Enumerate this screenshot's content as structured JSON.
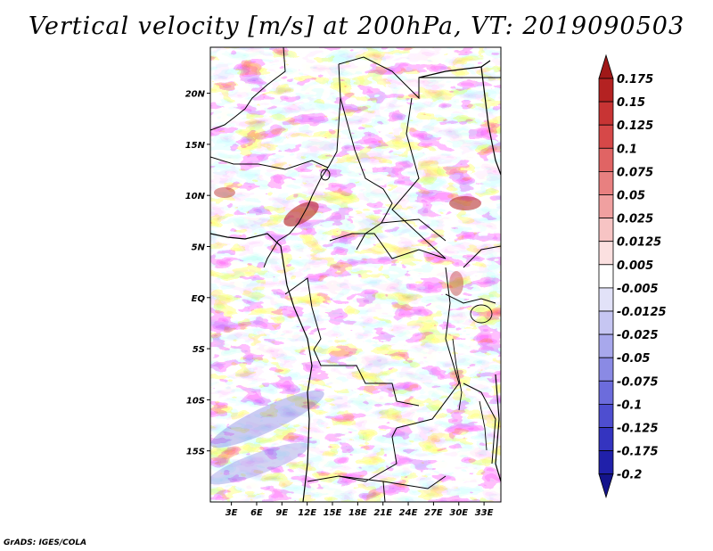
{
  "title": "Vertical velocity [m/s] at 200hPa, VT: 2019090503",
  "credit": "GrADS: IGES/COLA",
  "map": {
    "variable": "Vertical velocity",
    "units": "m/s",
    "level": "200hPa",
    "valid_time": "2019090503",
    "lat_labels": [
      "20N",
      "15N",
      "10N",
      "5N",
      "EQ",
      "5S",
      "10S",
      "15S"
    ],
    "lat_values": [
      20,
      15,
      10,
      5,
      0,
      -5,
      -10,
      -15
    ],
    "lon_labels": [
      "3E",
      "6E",
      "9E",
      "12E",
      "15E",
      "18E",
      "21E",
      "24E",
      "27E",
      "30E",
      "33E"
    ],
    "lon_values": [
      3,
      6,
      9,
      12,
      15,
      18,
      21,
      24,
      27,
      30,
      33
    ],
    "lon_range": [
      0.5,
      35
    ],
    "lat_range": [
      -20,
      24.5
    ]
  },
  "colorbar": {
    "labels": [
      "0.175",
      "0.15",
      "0.125",
      "0.1",
      "0.075",
      "0.05",
      "0.025",
      "0.0125",
      "0.005",
      "-0.005",
      "-0.0125",
      "-0.025",
      "-0.05",
      "-0.075",
      "-0.1",
      "-0.125",
      "-0.175",
      "-0.2"
    ],
    "colors": [
      "#a01818",
      "#b42222",
      "#c83434",
      "#d64848",
      "#e06464",
      "#e88080",
      "#f0a0a0",
      "#f7c4c4",
      "#fbe0e0",
      "#ffffff",
      "#e2e2f8",
      "#c6c6f2",
      "#a8a8ec",
      "#8a8ae4",
      "#6c6cdc",
      "#4e4ed0",
      "#3434c0",
      "#2020aa",
      "#14148c"
    ]
  }
}
